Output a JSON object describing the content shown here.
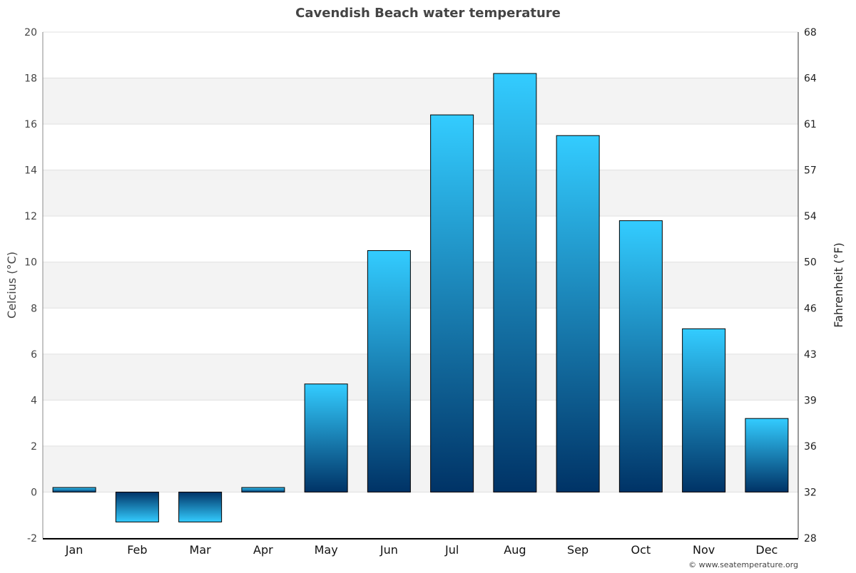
{
  "chart_data": {
    "type": "bar",
    "title": "Cavendish Beach water temperature",
    "ylabel": "Celcius (°C)",
    "y2label": "Fahrenheit (°F)",
    "xlabel": "",
    "categories": [
      "Jan",
      "Feb",
      "Mar",
      "Apr",
      "May",
      "Jun",
      "Jul",
      "Aug",
      "Sep",
      "Oct",
      "Nov",
      "Dec"
    ],
    "values": [
      0.2,
      -1.3,
      -1.3,
      0.2,
      4.7,
      10.5,
      16.4,
      18.2,
      15.5,
      11.8,
      7.1,
      3.2
    ],
    "ylim": [
      -2,
      20
    ],
    "yticks": [
      "-2",
      "0",
      "2",
      "4",
      "6",
      "8",
      "10",
      "12",
      "14",
      "16",
      "18",
      "20"
    ],
    "y2ticks": [
      "28",
      "32",
      "36",
      "39",
      "43",
      "46",
      "50",
      "54",
      "57",
      "61",
      "64",
      "68"
    ],
    "grid": true,
    "colors": {
      "bar_top": "#33ccff",
      "bar_bottom": "#003366",
      "band": "#f3f3f3",
      "title": "#444444"
    },
    "credit": "© www.seatemperature.org"
  }
}
